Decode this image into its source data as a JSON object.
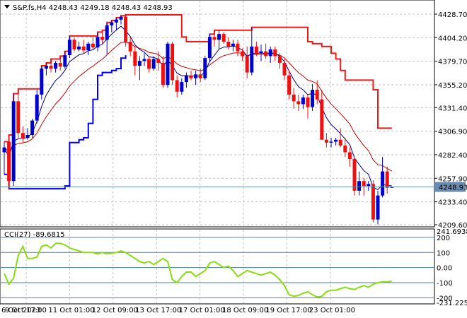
{
  "header": {
    "symbol_line": "S&P.fs,H4  4248.43 4249.18 4248.43 4248.93"
  },
  "indicator_header": {
    "label": "CCI(27) -89.6815"
  },
  "colors": {
    "bull": "#0000cc",
    "bear": "#ee1111",
    "fast_ma": "#000080",
    "slow_ma": "#cc0000",
    "upper_band": "#ee0000",
    "lower_band": "#0000ee",
    "cci_line": "#88dd11",
    "cci_level": "#4a7fa5",
    "grid": "#c0c0c0",
    "price_tag_bg": "#6a8caf"
  },
  "chart_data": [
    {
      "type": "candlestick",
      "title": "S&P.fs,H4",
      "last_price": 4248.93,
      "price_label": "4248.93",
      "ylim": [
        4209.6,
        4428.7
      ],
      "y_ticks": [
        "4428.70",
        "4404.20",
        "4379.70",
        "4355.20",
        "4331.40",
        "4306.90",
        "4282.40",
        "4257.90",
        "4233.40",
        "4209.60"
      ],
      "x_ticks": [
        "6 Oct 2023",
        "9 Oct 17:00",
        "11 Oct 01:00",
        "12 Oct 09:00",
        "13 Oct 17:00",
        "17 Oct 01:00",
        "18 Oct 09:00",
        "19 Oct 17:00",
        "23 Oct 01:00"
      ],
      "candles": [
        {
          "o": 4285,
          "h": 4296,
          "l": 4262,
          "c": 4290
        },
        {
          "o": 4296,
          "h": 4303,
          "l": 4247,
          "c": 4255
        },
        {
          "o": 4255,
          "h": 4346,
          "l": 4250,
          "c": 4338
        },
        {
          "o": 4338,
          "h": 4351,
          "l": 4300,
          "c": 4305
        },
        {
          "o": 4305,
          "h": 4312,
          "l": 4295,
          "c": 4300
        },
        {
          "o": 4300,
          "h": 4310,
          "l": 4298,
          "c": 4303
        },
        {
          "o": 4303,
          "h": 4320,
          "l": 4300,
          "c": 4318
        },
        {
          "o": 4318,
          "h": 4350,
          "l": 4315,
          "c": 4345
        },
        {
          "o": 4345,
          "h": 4375,
          "l": 4340,
          "c": 4372
        },
        {
          "o": 4372,
          "h": 4378,
          "l": 4365,
          "c": 4375
        },
        {
          "o": 4375,
          "h": 4382,
          "l": 4368,
          "c": 4372
        },
        {
          "o": 4372,
          "h": 4380,
          "l": 4368,
          "c": 4378
        },
        {
          "o": 4378,
          "h": 4385,
          "l": 4370,
          "c": 4374
        },
        {
          "o": 4374,
          "h": 4390,
          "l": 4372,
          "c": 4386
        },
        {
          "o": 4386,
          "h": 4406,
          "l": 4383,
          "c": 4402
        },
        {
          "o": 4402,
          "h": 4404,
          "l": 4390,
          "c": 4392
        },
        {
          "o": 4392,
          "h": 4400,
          "l": 4390,
          "c": 4395
        },
        {
          "o": 4395,
          "h": 4402,
          "l": 4388,
          "c": 4391
        },
        {
          "o": 4391,
          "h": 4400,
          "l": 4386,
          "c": 4398
        },
        {
          "o": 4398,
          "h": 4405,
          "l": 4392,
          "c": 4394
        },
        {
          "o": 4394,
          "h": 4410,
          "l": 4390,
          "c": 4405
        },
        {
          "o": 4405,
          "h": 4412,
          "l": 4398,
          "c": 4402
        },
        {
          "o": 4402,
          "h": 4420,
          "l": 4387,
          "c": 4417
        },
        {
          "o": 4417,
          "h": 4422,
          "l": 4410,
          "c": 4420
        },
        {
          "o": 4420,
          "h": 4425,
          "l": 4412,
          "c": 4423
        },
        {
          "o": 4423,
          "h": 4427,
          "l": 4418,
          "c": 4426
        },
        {
          "o": 4426,
          "h": 4428,
          "l": 4395,
          "c": 4400
        },
        {
          "o": 4400,
          "h": 4405,
          "l": 4385,
          "c": 4390
        },
        {
          "o": 4390,
          "h": 4395,
          "l": 4365,
          "c": 4375
        },
        {
          "o": 4375,
          "h": 4385,
          "l": 4360,
          "c": 4380
        },
        {
          "o": 4380,
          "h": 4388,
          "l": 4375,
          "c": 4382
        },
        {
          "o": 4382,
          "h": 4385,
          "l": 4368,
          "c": 4372
        },
        {
          "o": 4372,
          "h": 4385,
          "l": 4370,
          "c": 4382
        },
        {
          "o": 4382,
          "h": 4390,
          "l": 4370,
          "c": 4378
        },
        {
          "o": 4378,
          "h": 4385,
          "l": 4352,
          "c": 4355
        },
        {
          "o": 4355,
          "h": 4400,
          "l": 4352,
          "c": 4398
        },
        {
          "o": 4398,
          "h": 4400,
          "l": 4355,
          "c": 4360
        },
        {
          "o": 4360,
          "h": 4365,
          "l": 4342,
          "c": 4348
        },
        {
          "o": 4348,
          "h": 4362,
          "l": 4345,
          "c": 4358
        },
        {
          "o": 4358,
          "h": 4368,
          "l": 4352,
          "c": 4365
        },
        {
          "o": 4365,
          "h": 4370,
          "l": 4360,
          "c": 4362
        },
        {
          "o": 4362,
          "h": 4370,
          "l": 4355,
          "c": 4366
        },
        {
          "o": 4366,
          "h": 4372,
          "l": 4358,
          "c": 4362
        },
        {
          "o": 4362,
          "h": 4385,
          "l": 4360,
          "c": 4383
        },
        {
          "o": 4383,
          "h": 4408,
          "l": 4380,
          "c": 4405
        },
        {
          "o": 4405,
          "h": 4412,
          "l": 4395,
          "c": 4402
        },
        {
          "o": 4402,
          "h": 4412,
          "l": 4392,
          "c": 4408
        },
        {
          "o": 4408,
          "h": 4410,
          "l": 4398,
          "c": 4400
        },
        {
          "o": 4400,
          "h": 4405,
          "l": 4392,
          "c": 4395
        },
        {
          "o": 4395,
          "h": 4402,
          "l": 4390,
          "c": 4398
        },
        {
          "o": 4398,
          "h": 4402,
          "l": 4385,
          "c": 4390
        },
        {
          "o": 4390,
          "h": 4393,
          "l": 4380,
          "c": 4385
        },
        {
          "o": 4385,
          "h": 4395,
          "l": 4362,
          "c": 4368
        },
        {
          "o": 4368,
          "h": 4415,
          "l": 4365,
          "c": 4395
        },
        {
          "o": 4395,
          "h": 4400,
          "l": 4385,
          "c": 4388
        },
        {
          "o": 4388,
          "h": 4397,
          "l": 4380,
          "c": 4390
        },
        {
          "o": 4390,
          "h": 4398,
          "l": 4382,
          "c": 4385
        },
        {
          "o": 4385,
          "h": 4395,
          "l": 4378,
          "c": 4392
        },
        {
          "o": 4392,
          "h": 4395,
          "l": 4380,
          "c": 4385
        },
        {
          "o": 4385,
          "h": 4388,
          "l": 4372,
          "c": 4378
        },
        {
          "o": 4378,
          "h": 4382,
          "l": 4360,
          "c": 4365
        },
        {
          "o": 4365,
          "h": 4370,
          "l": 4340,
          "c": 4345
        },
        {
          "o": 4345,
          "h": 4352,
          "l": 4330,
          "c": 4338
        },
        {
          "o": 4338,
          "h": 4345,
          "l": 4328,
          "c": 4335
        },
        {
          "o": 4335,
          "h": 4345,
          "l": 4330,
          "c": 4342
        },
        {
          "o": 4342,
          "h": 4345,
          "l": 4320,
          "c": 4332
        },
        {
          "o": 4332,
          "h": 4356,
          "l": 4328,
          "c": 4350
        },
        {
          "o": 4350,
          "h": 4360,
          "l": 4335,
          "c": 4340
        },
        {
          "o": 4340,
          "h": 4350,
          "l": 4300,
          "c": 4298
        },
        {
          "o": 4298,
          "h": 4305,
          "l": 4290,
          "c": 4295
        },
        {
          "o": 4295,
          "h": 4300,
          "l": 4290,
          "c": 4296
        },
        {
          "o": 4296,
          "h": 4300,
          "l": 4292,
          "c": 4298
        },
        {
          "o": 4298,
          "h": 4310,
          "l": 4290,
          "c": 4292
        },
        {
          "o": 4292,
          "h": 4300,
          "l": 4280,
          "c": 4285
        },
        {
          "o": 4285,
          "h": 4290,
          "l": 4270,
          "c": 4278
        },
        {
          "o": 4278,
          "h": 4280,
          "l": 4240,
          "c": 4245
        },
        {
          "o": 4245,
          "h": 4265,
          "l": 4240,
          "c": 4255
        },
        {
          "o": 4255,
          "h": 4258,
          "l": 4240,
          "c": 4250
        },
        {
          "o": 4250,
          "h": 4255,
          "l": 4245,
          "c": 4252
        },
        {
          "o": 4252,
          "h": 4256,
          "l": 4212,
          "c": 4215
        },
        {
          "o": 4215,
          "h": 4245,
          "l": 4210,
          "c": 4240
        },
        {
          "o": 4240,
          "h": 4280,
          "l": 4238,
          "c": 4265
        },
        {
          "o": 4265,
          "h": 4270,
          "l": 4242,
          "c": 4248
        },
        {
          "o": 4248,
          "h": 4249,
          "l": 4248,
          "c": 4248.93
        }
      ]
    },
    {
      "type": "line",
      "title": "CCI(27) -89.6815",
      "last_value": -89.6815,
      "ylim": [
        -231.225,
        241.6938
      ],
      "levels": [
        200,
        100,
        0,
        -100,
        -200
      ],
      "y_tick_labels": [
        "241.6938",
        "200",
        "100",
        "0.00",
        "-100",
        "-200",
        "-231.225"
      ],
      "values": [
        -40,
        -110,
        -70,
        80,
        140,
        60,
        60,
        70,
        140,
        150,
        130,
        160,
        160,
        150,
        130,
        120,
        110,
        100,
        100,
        100,
        90,
        100,
        90,
        95,
        100,
        110,
        100,
        80,
        60,
        40,
        30,
        40,
        20,
        40,
        60,
        40,
        -80,
        -100,
        -60,
        -30,
        -30,
        -60,
        -40,
        -20,
        30,
        40,
        20,
        0,
        10,
        -20,
        -60,
        -40,
        -20,
        -30,
        -40,
        -50,
        -40,
        -30,
        -50,
        -80,
        -120,
        -180,
        -190,
        -185,
        -170,
        -160,
        -180,
        -195,
        -190,
        -160,
        -150,
        -150,
        -140,
        -130,
        -140,
        -145,
        -130,
        -120,
        -130,
        -110,
        -100,
        -95,
        -95,
        -90
      ]
    }
  ]
}
